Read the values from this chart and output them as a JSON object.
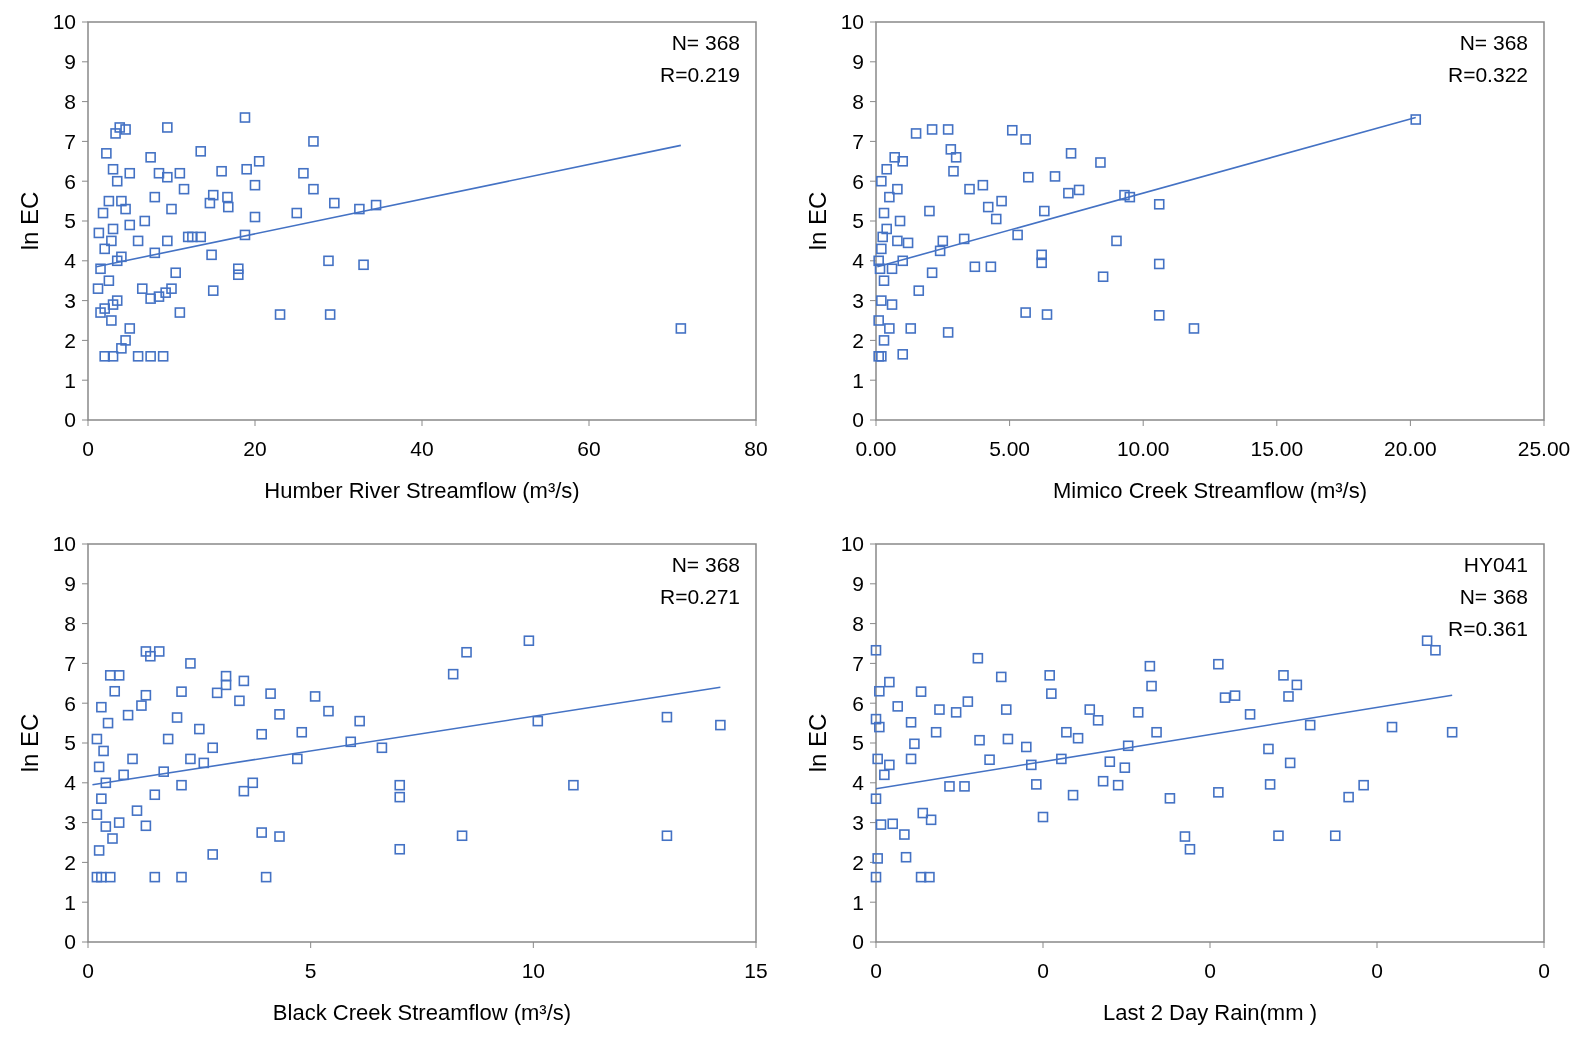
{
  "chart_data": [
    {
      "type": "scatter",
      "xlabel": "Humber River Streamflow (m³/s)",
      "ylabel": "ln EC",
      "xlim": [
        0,
        80
      ],
      "xticks": [
        0,
        20,
        40,
        60,
        80
      ],
      "ylim": [
        0,
        10
      ],
      "yticks": [
        0,
        1,
        2,
        3,
        4,
        5,
        6,
        7,
        8,
        9,
        10
      ],
      "grid": false,
      "marker": "square",
      "annotations": [
        "N= 368",
        "R=0.219"
      ],
      "series": [
        {
          "type": "scatter",
          "color": "#4472c4",
          "x": [
            71,
            34.5,
            32.5,
            33,
            29.5,
            28.8,
            29,
            27,
            27,
            25.8,
            25,
            23,
            20.5,
            20,
            20,
            19,
            18.8,
            18.8,
            18,
            18,
            16.8,
            16.7,
            16,
            15,
            14.8,
            15,
            14.6,
            13.5,
            13.5,
            12.5,
            12,
            11.5,
            11,
            11,
            10.5,
            10,
            10,
            9.5,
            9.5,
            9.5,
            9.3,
            9,
            8.5,
            8.5,
            8,
            8,
            7.5,
            7.5,
            7.5,
            6.8,
            6.5,
            6,
            5,
            5,
            5,
            4.5,
            4.5,
            4,
            4,
            3.8,
            3.5,
            3.5,
            3.3,
            3,
            3,
            3,
            2.8,
            2.5,
            2.5,
            2.2,
            2,
            2,
            2,
            1.8,
            1.5,
            1.5,
            1.3,
            1.2,
            4,
            3.5,
            2.8,
            4.5,
            3,
            6
          ],
          "values": [
            2.3,
            5.4,
            5.3,
            3.9,
            5.45,
            4.0,
            2.65,
            7.0,
            5.8,
            6.2,
            5.2,
            2.65,
            6.5,
            5.9,
            5.1,
            6.3,
            7.6,
            4.65,
            3.8,
            3.65,
            5.35,
            5.6,
            6.25,
            5.65,
            4.15,
            3.25,
            5.45,
            6.75,
            4.6,
            4.6,
            4.6,
            5.8,
            6.2,
            2.7,
            3.7,
            5.3,
            3.3,
            7.35,
            6.1,
            4.5,
            3.2,
            1.6,
            6.2,
            3.1,
            5.6,
            4.2,
            6.6,
            3.05,
            1.6,
            5.0,
            3.3,
            1.6,
            2.3,
            6.2,
            4.9,
            7.3,
            2.0,
            1.8,
            5.5,
            7.35,
            6.0,
            4.0,
            7.2,
            2.9,
            6.3,
            1.6,
            4.5,
            5.5,
            3.5,
            6.7,
            4.3,
            2.8,
            1.6,
            5.2,
            3.8,
            2.7,
            4.7,
            3.3,
            4.1,
            3.0,
            2.5,
            5.3,
            4.8,
            4.5
          ]
        },
        {
          "type": "line",
          "color": "#4472c4",
          "marker": "none",
          "x": [
            1,
            71
          ],
          "values": [
            3.85,
            6.9
          ]
        }
      ]
    },
    {
      "type": "scatter",
      "xlabel": "Mimico Creek Streamflow (m³/s)",
      "ylabel": "ln EC",
      "xlim": [
        0,
        25
      ],
      "xticks": [
        {
          "value": 0,
          "label": "0.00"
        },
        {
          "value": 5,
          "label": "5.00"
        },
        {
          "value": 10,
          "label": "10.00"
        },
        {
          "value": 15,
          "label": "15.00"
        },
        {
          "value": 20,
          "label": "20.00"
        },
        {
          "value": 25,
          "label": "25.00"
        }
      ],
      "ylim": [
        0,
        10
      ],
      "yticks": [
        0,
        1,
        2,
        3,
        4,
        5,
        6,
        7,
        8,
        9,
        10
      ],
      "grid": false,
      "marker": "square",
      "annotations": [
        "N= 368",
        "R=0.322"
      ],
      "series": [
        {
          "type": "scatter",
          "color": "#4472c4",
          "x": [
            20.2,
            10.6,
            9.5,
            9.3,
            9.0,
            10.6,
            10.6,
            11.9,
            8.5,
            8.4,
            7.3,
            7.6,
            7.2,
            5.6,
            5.1,
            6.7,
            5.7,
            6.2,
            6.2,
            6.3,
            5.3,
            5.6,
            6.4,
            4.5,
            4.7,
            4.2,
            4.3,
            3.7,
            3.5,
            4.0,
            3.3,
            2.7,
            2.7,
            2.1,
            1.5,
            2.8,
            2.9,
            3.0,
            2.0,
            2.5,
            2.4,
            2.1,
            1.3,
            1.0,
            1.6,
            1.2,
            1.0,
            0.1,
            0.2,
            0.3,
            0.1,
            0.2,
            0.3,
            0.1,
            0.2,
            0.4,
            0.3,
            0.5,
            0.2,
            0.4,
            0.7,
            0.6,
            0.8,
            0.9,
            0.6,
            0.5,
            0.8,
            1.0,
            0.15,
            0.25
          ],
          "values": [
            7.55,
            5.42,
            5.6,
            5.65,
            4.5,
            3.92,
            2.63,
            2.3,
            3.6,
            6.47,
            6.7,
            5.78,
            5.7,
            7.05,
            7.28,
            6.12,
            6.1,
            4.15,
            3.95,
            5.25,
            4.65,
            2.7,
            2.65,
            5.05,
            5.5,
            5.35,
            3.85,
            3.85,
            5.8,
            5.9,
            4.55,
            2.2,
            7.3,
            7.3,
            7.2,
            6.8,
            6.25,
            6.6,
            5.25,
            4.5,
            4.25,
            3.7,
            2.3,
            1.65,
            3.25,
            4.45,
            6.5,
            1.6,
            1.6,
            2.0,
            2.5,
            3.0,
            3.5,
            4.0,
            4.3,
            4.8,
            5.2,
            5.6,
            6.0,
            6.3,
            6.6,
            3.8,
            4.5,
            5.0,
            2.9,
            2.3,
            5.8,
            4.0,
            3.8,
            4.6
          ]
        },
        {
          "type": "line",
          "color": "#4472c4",
          "marker": "none",
          "x": [
            0.05,
            20.2
          ],
          "values": [
            3.85,
            7.6
          ]
        }
      ]
    },
    {
      "type": "scatter",
      "xlabel": "Black Creek Streamflow (m³/s)",
      "ylabel": "ln EC",
      "xlim": [
        0,
        15
      ],
      "xticks": [
        0,
        5,
        10,
        15
      ],
      "ylim": [
        0,
        10
      ],
      "yticks": [
        0,
        1,
        2,
        3,
        4,
        5,
        6,
        7,
        8,
        9,
        10
      ],
      "grid": false,
      "marker": "square",
      "annotations": [
        "N= 368",
        "R=0.271"
      ],
      "series": [
        {
          "type": "scatter",
          "color": "#4472c4",
          "x": [
            14.2,
            13.0,
            13.0,
            10.9,
            10.1,
            9.9,
            8.5,
            8.2,
            8.4,
            7.0,
            7.0,
            7.0,
            6.6,
            6.1,
            5.9,
            5.4,
            5.1,
            4.8,
            4.7,
            4.3,
            4.3,
            4.1,
            4.0,
            3.9,
            3.9,
            3.7,
            3.5,
            3.5,
            3.4,
            3.1,
            3.1,
            2.9,
            2.8,
            2.8,
            2.6,
            2.5,
            2.3,
            2.3,
            2.1,
            2.1,
            2.1,
            2.0,
            1.8,
            1.6,
            1.4,
            1.3,
            1.5,
            1.7,
            1.5,
            1.3,
            1.3,
            1.2,
            0.2,
            0.3,
            0.5,
            0.25,
            0.4,
            0.2,
            0.3,
            0.4,
            0.25,
            0.35,
            0.2,
            0.45,
            0.3,
            0.6,
            0.5,
            0.7,
            0.8,
            0.9,
            0.7,
            0.55,
            1.0,
            1.1
          ],
          "values": [
            5.45,
            5.65,
            2.67,
            3.94,
            5.55,
            7.57,
            7.28,
            6.73,
            2.67,
            3.94,
            3.64,
            2.33,
            4.88,
            5.55,
            5.03,
            5.8,
            6.17,
            5.27,
            4.6,
            2.65,
            5.72,
            6.24,
            1.63,
            5.22,
            2.75,
            4.0,
            3.79,
            6.56,
            6.06,
            6.46,
            6.68,
            6.26,
            2.2,
            4.88,
            4.5,
            5.35,
            4.6,
            7.0,
            3.94,
            1.63,
            6.29,
            5.64,
            5.1,
            7.3,
            7.18,
            7.3,
            1.63,
            4.28,
            3.7,
            6.2,
            2.92,
            5.94,
            1.63,
            1.63,
            1.63,
            2.3,
            2.9,
            3.2,
            3.6,
            4.0,
            4.4,
            4.8,
            5.1,
            5.5,
            5.9,
            6.3,
            6.7,
            6.7,
            4.2,
            5.7,
            3.0,
            2.6,
            4.6,
            3.3
          ]
        },
        {
          "type": "line",
          "color": "#4472c4",
          "marker": "none",
          "x": [
            0.1,
            14.2
          ],
          "values": [
            3.95,
            6.4
          ]
        }
      ]
    },
    {
      "type": "scatter",
      "xlabel": "Last 2 Day Rain(mm )",
      "ylabel": "ln EC",
      "xlim": [
        0,
        0.4
      ],
      "xticks": [
        {
          "value": 0,
          "label": "0"
        },
        {
          "value": 0.1,
          "label": "0"
        },
        {
          "value": 0.2,
          "label": "0"
        },
        {
          "value": 0.3,
          "label": "0"
        },
        {
          "value": 0.4,
          "label": "0"
        }
      ],
      "ylim": [
        0,
        10
      ],
      "yticks": [
        0,
        1,
        2,
        3,
        4,
        5,
        6,
        7,
        8,
        9,
        10
      ],
      "grid": false,
      "marker": "square",
      "annotations": [
        "HY041",
        "N= 368",
        "R=0.361"
      ],
      "series": [
        {
          "type": "scatter",
          "color": "#4472c4",
          "x": [
            0.33,
            0.335,
            0.345,
            0.309,
            0.292,
            0.283,
            0.275,
            0.26,
            0.252,
            0.244,
            0.247,
            0.248,
            0.241,
            0.236,
            0.235,
            0.224,
            0.215,
            0.209,
            0.205,
            0.205,
            0.188,
            0.185,
            0.176,
            0.168,
            0.165,
            0.164,
            0.157,
            0.151,
            0.149,
            0.145,
            0.14,
            0.136,
            0.133,
            0.128,
            0.121,
            0.118,
            0.114,
            0.111,
            0.105,
            0.104,
            0.1,
            0.096,
            0.093,
            0.09,
            0.079,
            0.078,
            0.075,
            0.068,
            0.062,
            0.061,
            0.055,
            0.053,
            0.048,
            0.044,
            0.038,
            0.036,
            0.033,
            0.032,
            0.028,
            0.023,
            0.021,
            0.018,
            0.017,
            0.01,
            0.008,
            0.013,
            0.021,
            0.027,
            0.027,
            0.008,
            0,
            0,
            0.001,
            0,
            0.001,
            0,
            0.002,
            0.002,
            0.003,
            0.005
          ],
          "values": [
            7.57,
            7.33,
            5.27,
            5.4,
            3.94,
            3.64,
            2.67,
            5.45,
            6.46,
            6.7,
            6.17,
            4.5,
            2.67,
            3.96,
            4.85,
            5.72,
            6.19,
            6.14,
            6.98,
            3.76,
            2.33,
            2.65,
            3.61,
            5.27,
            6.43,
            6.93,
            5.77,
            4.93,
            4.38,
            3.94,
            4.53,
            4.04,
            5.57,
            5.84,
            5.12,
            3.69,
            5.27,
            4.6,
            6.24,
            6.7,
            3.14,
            3.96,
            4.45,
            4.9,
            5.1,
            5.84,
            6.66,
            4.58,
            5.07,
            7.13,
            6.04,
            3.91,
            5.77,
            3.91,
            5.84,
            5.27,
            3.07,
            1.63,
            3.24,
            4.98,
            4.6,
            2.13,
            2.7,
            2.97,
            4.45,
            5.92,
            5.52,
            1.63,
            6.29,
            6.53,
            7.33,
            1.63,
            2.1,
            3.6,
            4.6,
            5.6,
            6.3,
            5.4,
            2.95,
            4.2
          ]
        },
        {
          "type": "line",
          "color": "#4472c4",
          "marker": "none",
          "x": [
            0,
            0.345
          ],
          "values": [
            3.85,
            6.2
          ]
        }
      ]
    }
  ]
}
